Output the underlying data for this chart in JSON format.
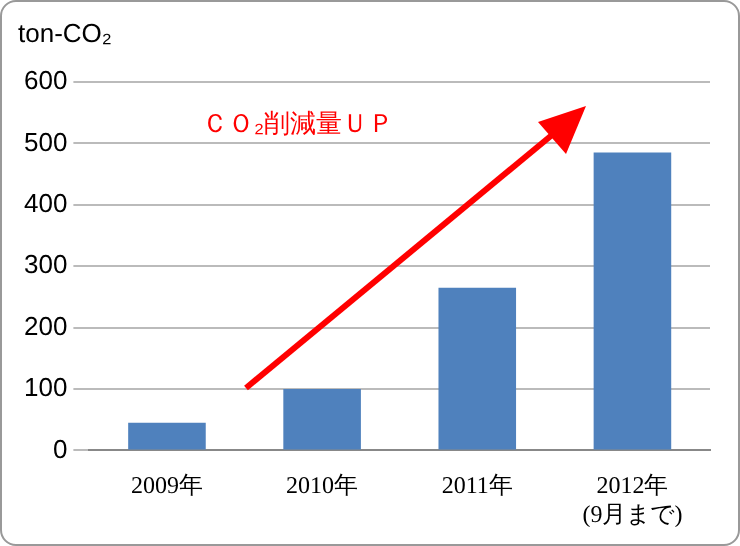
{
  "chart_data": {
    "type": "bar",
    "ylabel": "ton-CO₂",
    "categories": [
      "2009年",
      "2010年",
      "2011年",
      "2012年\n(9月まで)"
    ],
    "values": [
      45,
      100,
      265,
      485
    ],
    "color": "#4f81bd",
    "ylim": [
      0,
      600
    ],
    "yticks": [
      0,
      100,
      200,
      300,
      400,
      500,
      600
    ],
    "grid": "y",
    "legend": false,
    "annotations": [
      "ＣＯ₂削減量ＵＰ"
    ]
  }
}
